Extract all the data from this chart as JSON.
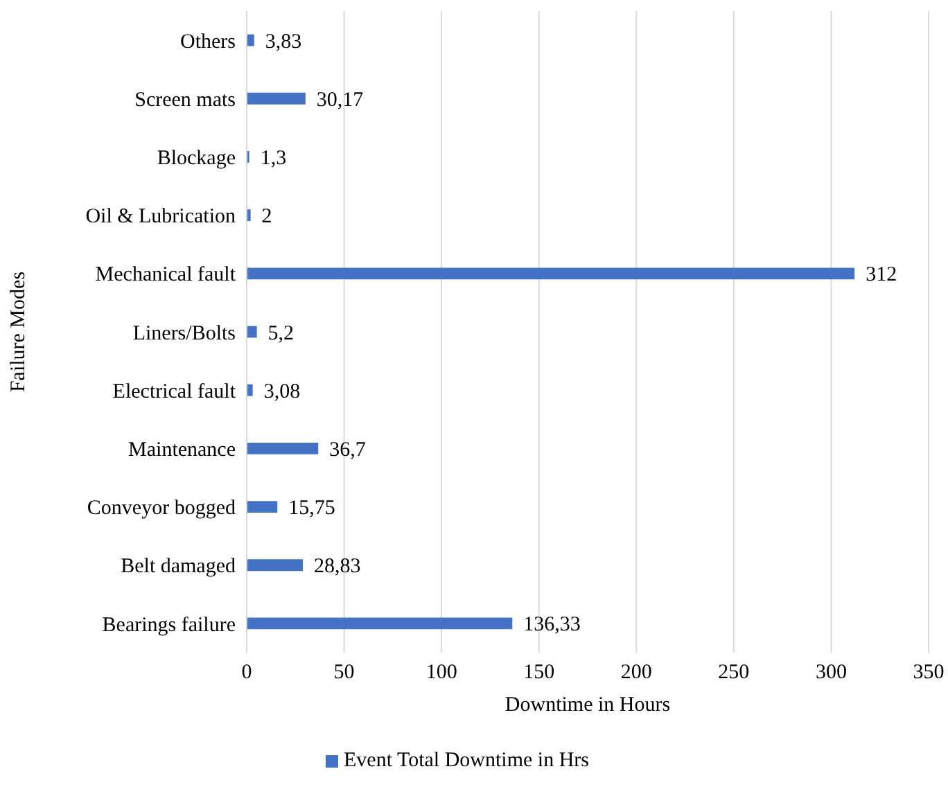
{
  "chart_data": {
    "type": "bar",
    "orientation": "horizontal",
    "xlabel": "Downtime in Hours",
    "ylabel": "Failure Modes",
    "categories": [
      "Others",
      "Screen mats",
      "Blockage",
      "Oil & Lubrication",
      "Mechanical fault",
      "Liners/Bolts",
      "Electrical fault",
      "Maintenance",
      "Conveyor bogged",
      "Belt damaged",
      "Bearings failure"
    ],
    "series": [
      {
        "name": "Event Total Downtime in Hrs",
        "color": "#4472c4",
        "values": [
          3.83,
          30.17,
          1.3,
          2,
          312,
          5.2,
          3.08,
          36.7,
          15.75,
          28.83,
          136.33
        ],
        "value_labels": [
          "3,83",
          "30,17",
          "1,3",
          "2",
          "312",
          "5,2",
          "3,08",
          "36,7",
          "15,75",
          "28,83",
          "136,33"
        ]
      }
    ],
    "xlim": [
      0,
      350
    ],
    "xticks": [
      0,
      50,
      100,
      150,
      200,
      250,
      300,
      350
    ],
    "grid": "x",
    "legend": "bottom"
  }
}
